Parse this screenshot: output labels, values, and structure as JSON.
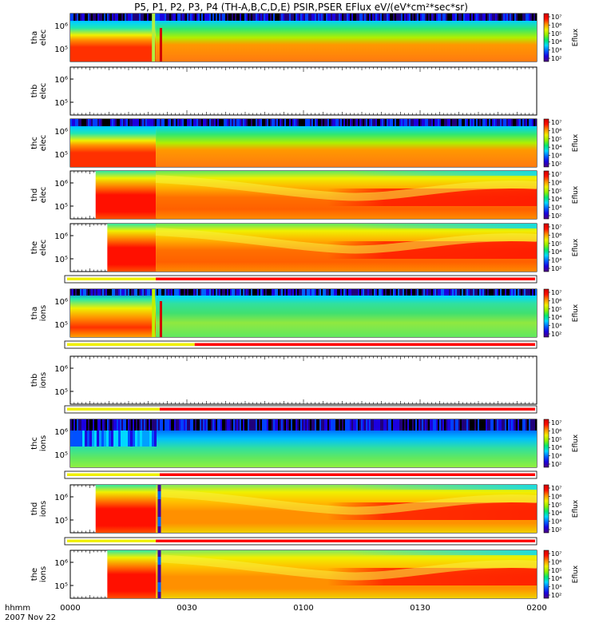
{
  "title": "P5, P1, P2, P3, P4 (TH-A,B,C,D,E) PSIR,PSER EFlux eV/(eV*cm²*sec*sr)",
  "time_axis": {
    "label_top": "hhmm",
    "label_bottom": "2007 Nov 22",
    "ticks": [
      "0000",
      "0030",
      "0100",
      "0130",
      "0200"
    ],
    "range_minutes": [
      0,
      120
    ]
  },
  "colorbar": {
    "label": "Eflux",
    "tick_labels": [
      "10⁷",
      "10⁶",
      "10⁵",
      "10⁴",
      "10³",
      "10²"
    ],
    "range_log10": [
      2,
      7
    ],
    "colors": [
      "#500080",
      "#1b00e0",
      "#0060ff",
      "#00d8ff",
      "#00e870",
      "#90f000",
      "#f0f000",
      "#ff9000",
      "#ff1000",
      "#d00000"
    ]
  },
  "chart_data": {
    "type": "heatmap",
    "x_unit": "minutes after 2007-11-22 00:00 UT",
    "y_unit": "energy (eV, log scale)",
    "panels": [
      {
        "probe": "tha",
        "species": "elec",
        "label": "tha\nelec",
        "yticks": [
          "10⁶",
          "10⁵"
        ],
        "has_data": true,
        "data_start": 0,
        "colorbar": true,
        "ephemeris_bar": false
      },
      {
        "probe": "thb",
        "species": "elec",
        "label": "thb\nelec",
        "yticks": [
          "10⁶",
          "10⁵"
        ],
        "has_data": false,
        "data_start": null,
        "colorbar": false,
        "ephemeris_bar": false
      },
      {
        "probe": "thc",
        "species": "elec",
        "label": "thc\nelec",
        "yticks": [
          "10⁶",
          "10⁵"
        ],
        "has_data": true,
        "data_start": 0,
        "colorbar": true,
        "ephemeris_bar": false
      },
      {
        "probe": "thd",
        "species": "elec",
        "label": "thd\nelec",
        "yticks": [
          "10⁶",
          "10⁵"
        ],
        "has_data": true,
        "data_start": 6.5,
        "colorbar": true,
        "ephemeris_bar": false
      },
      {
        "probe": "the",
        "species": "elec",
        "label": "the\nelec",
        "yticks": [
          "10⁶",
          "10⁵"
        ],
        "has_data": true,
        "data_start": 9.5,
        "colorbar": true,
        "ephemeris_bar": true,
        "bar_switch": 22
      },
      {
        "probe": "tha",
        "species": "ions",
        "label": "tha\nions",
        "yticks": [
          "10⁶",
          "10⁵"
        ],
        "has_data": true,
        "data_start": 0,
        "colorbar": true,
        "ephemeris_bar": true,
        "bar_switch": 32
      },
      {
        "probe": "thb",
        "species": "ions",
        "label": "thb\nions",
        "yticks": [
          "10⁶",
          "10⁵"
        ],
        "has_data": false,
        "data_start": null,
        "colorbar": false,
        "ephemeris_bar": true,
        "bar_switch": 23
      },
      {
        "probe": "thc",
        "species": "ions",
        "label": "thc\nions",
        "yticks": [
          "10⁶",
          "10⁵"
        ],
        "has_data": true,
        "data_start": 0,
        "colorbar": true,
        "ephemeris_bar": true,
        "bar_switch": 23
      },
      {
        "probe": "thd",
        "species": "ions",
        "label": "thd\nions",
        "yticks": [
          "10⁶",
          "10⁵"
        ],
        "has_data": true,
        "data_start": 6.5,
        "colorbar": true,
        "ephemeris_bar": true,
        "bar_switch": 22
      },
      {
        "probe": "the",
        "species": "ions",
        "label": "the\nions",
        "yticks": [
          "10⁶",
          "10⁵"
        ],
        "has_data": true,
        "data_start": 9.5,
        "colorbar": true,
        "ephemeris_bar": false
      }
    ]
  }
}
